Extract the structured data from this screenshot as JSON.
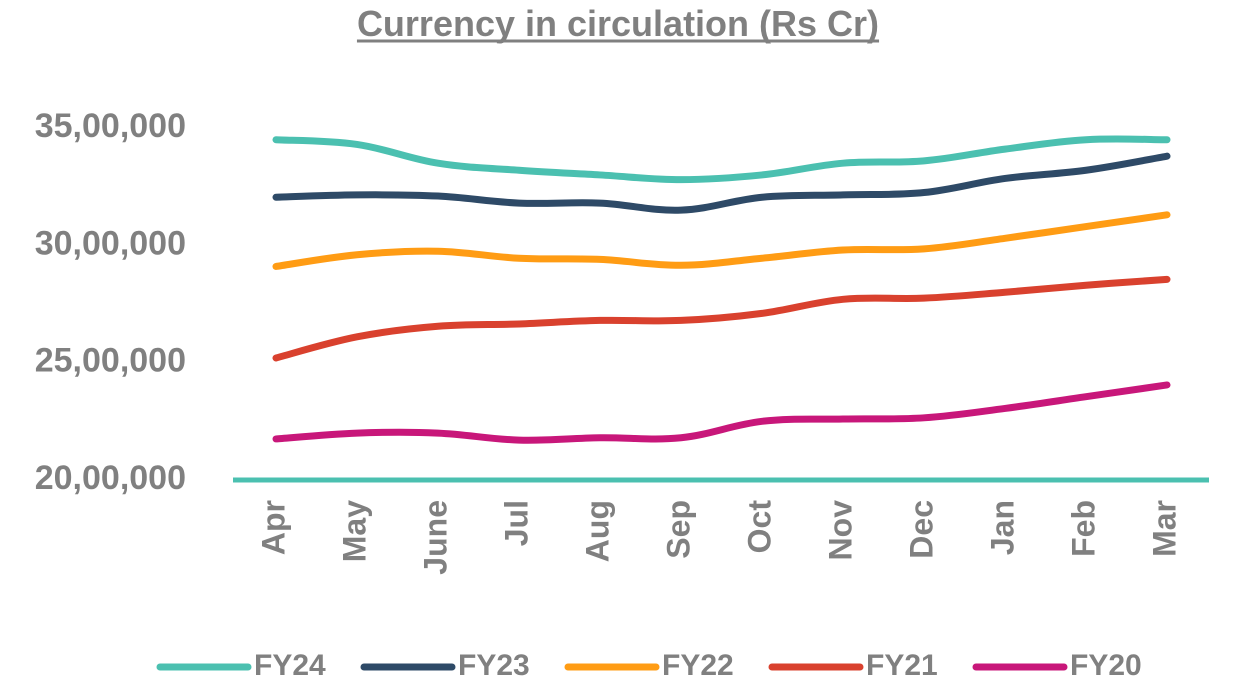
{
  "chart_data": {
    "type": "line",
    "title": "Currency in circulation (Rs Cr)",
    "xlabel": "",
    "ylabel": "",
    "categories": [
      "Apr",
      "May",
      "June",
      "Jul",
      "Aug",
      "Sep",
      "Oct",
      "Nov",
      "Dec",
      "Jan",
      "Feb",
      "Mar"
    ],
    "ylim": [
      2000000,
      3500000
    ],
    "yticks": [
      2000000,
      2500000,
      3000000,
      3500000
    ],
    "ytick_labels": [
      "20,00,000",
      "25,00,000",
      "30,00,000",
      "35,00,000"
    ],
    "grid": false,
    "legend_position": "bottom",
    "series": [
      {
        "name": "FY24",
        "color": "#4BC0B0",
        "values": [
          3450000,
          3430000,
          3350000,
          3320000,
          3300000,
          3280000,
          3300000,
          3350000,
          3360000,
          3410000,
          3450000,
          3450000
        ]
      },
      {
        "name": "FY23",
        "color": "#2E4A67",
        "values": [
          3205000,
          3215000,
          3210000,
          3180000,
          3180000,
          3150000,
          3205000,
          3215000,
          3225000,
          3285000,
          3320000,
          3380000
        ]
      },
      {
        "name": "FY22",
        "color": "#FF9C14",
        "values": [
          2910000,
          2960000,
          2975000,
          2945000,
          2940000,
          2915000,
          2945000,
          2980000,
          2985000,
          3030000,
          3080000,
          3130000
        ]
      },
      {
        "name": "FY21",
        "color": "#D9412E",
        "values": [
          2520000,
          2610000,
          2655000,
          2665000,
          2680000,
          2680000,
          2710000,
          2770000,
          2775000,
          2800000,
          2830000,
          2855000
        ]
      },
      {
        "name": "FY20",
        "color": "#C8177A",
        "values": [
          2175000,
          2200000,
          2200000,
          2170000,
          2180000,
          2180000,
          2250000,
          2260000,
          2265000,
          2305000,
          2355000,
          2405000
        ]
      }
    ],
    "baseline_color": "#4BC0B0",
    "axis_text_color": "#808080"
  }
}
